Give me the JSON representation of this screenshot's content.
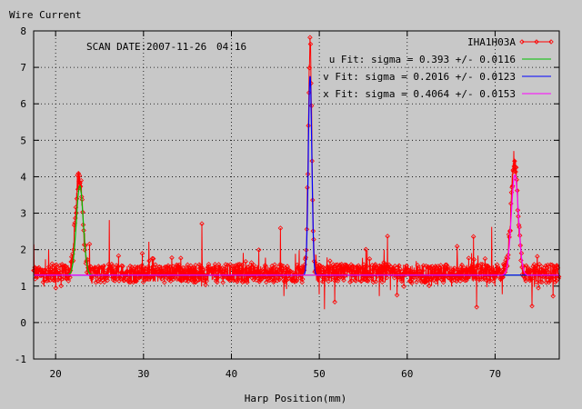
{
  "chart_data": {
    "type": "scatter",
    "title": "",
    "ylabel": "Wire Current",
    "xlabel": "Harp Position(mm)",
    "annotation_label": "SCAN DATE:",
    "annotation_date": "2007-11-26",
    "annotation_time": "04:16",
    "xlim": [
      17.5,
      77.3
    ],
    "ylim": [
      -1,
      8
    ],
    "xticks": [
      20,
      30,
      40,
      50,
      60,
      70
    ],
    "yticks": [
      -1,
      0,
      1,
      2,
      3,
      4,
      5,
      6,
      7,
      8
    ],
    "grid": true,
    "legend_position": "top-right",
    "baseline": 1.35,
    "series": [
      {
        "name": "IHA1H03A",
        "style": "line+points",
        "color": "#ff0000",
        "noise_amplitude": 0.25,
        "peaks": [
          {
            "center": 22.7,
            "height": 4.0
          },
          {
            "center": 48.95,
            "height": 7.6
          },
          {
            "center": 72.2,
            "height": 4.4
          }
        ]
      },
      {
        "name": "u  Fit: sigma = 0.393 +/- 0.0116",
        "style": "line",
        "color": "#00c000",
        "fit": {
          "center": 22.75,
          "sigma": 0.393,
          "amplitude": 2.45,
          "baseline": 1.3,
          "range": [
            17.5,
            77.3
          ]
        }
      },
      {
        "name": "v  Fit: sigma = 0.2016 +/- 0.0123",
        "style": "line",
        "color": "#0000ff",
        "fit": {
          "center": 48.95,
          "sigma": 0.2016,
          "amplitude": 5.45,
          "baseline": 1.3,
          "range": [
            17.5,
            77.3
          ]
        }
      },
      {
        "name": "x  Fit: sigma = 0.4064 +/- 0.0153",
        "style": "line",
        "color": "#ff00ff",
        "fit": {
          "center": 72.25,
          "sigma": 0.4064,
          "amplitude": 2.75,
          "baseline": 1.3,
          "range": [
            17.5,
            77.3
          ]
        }
      }
    ]
  }
}
